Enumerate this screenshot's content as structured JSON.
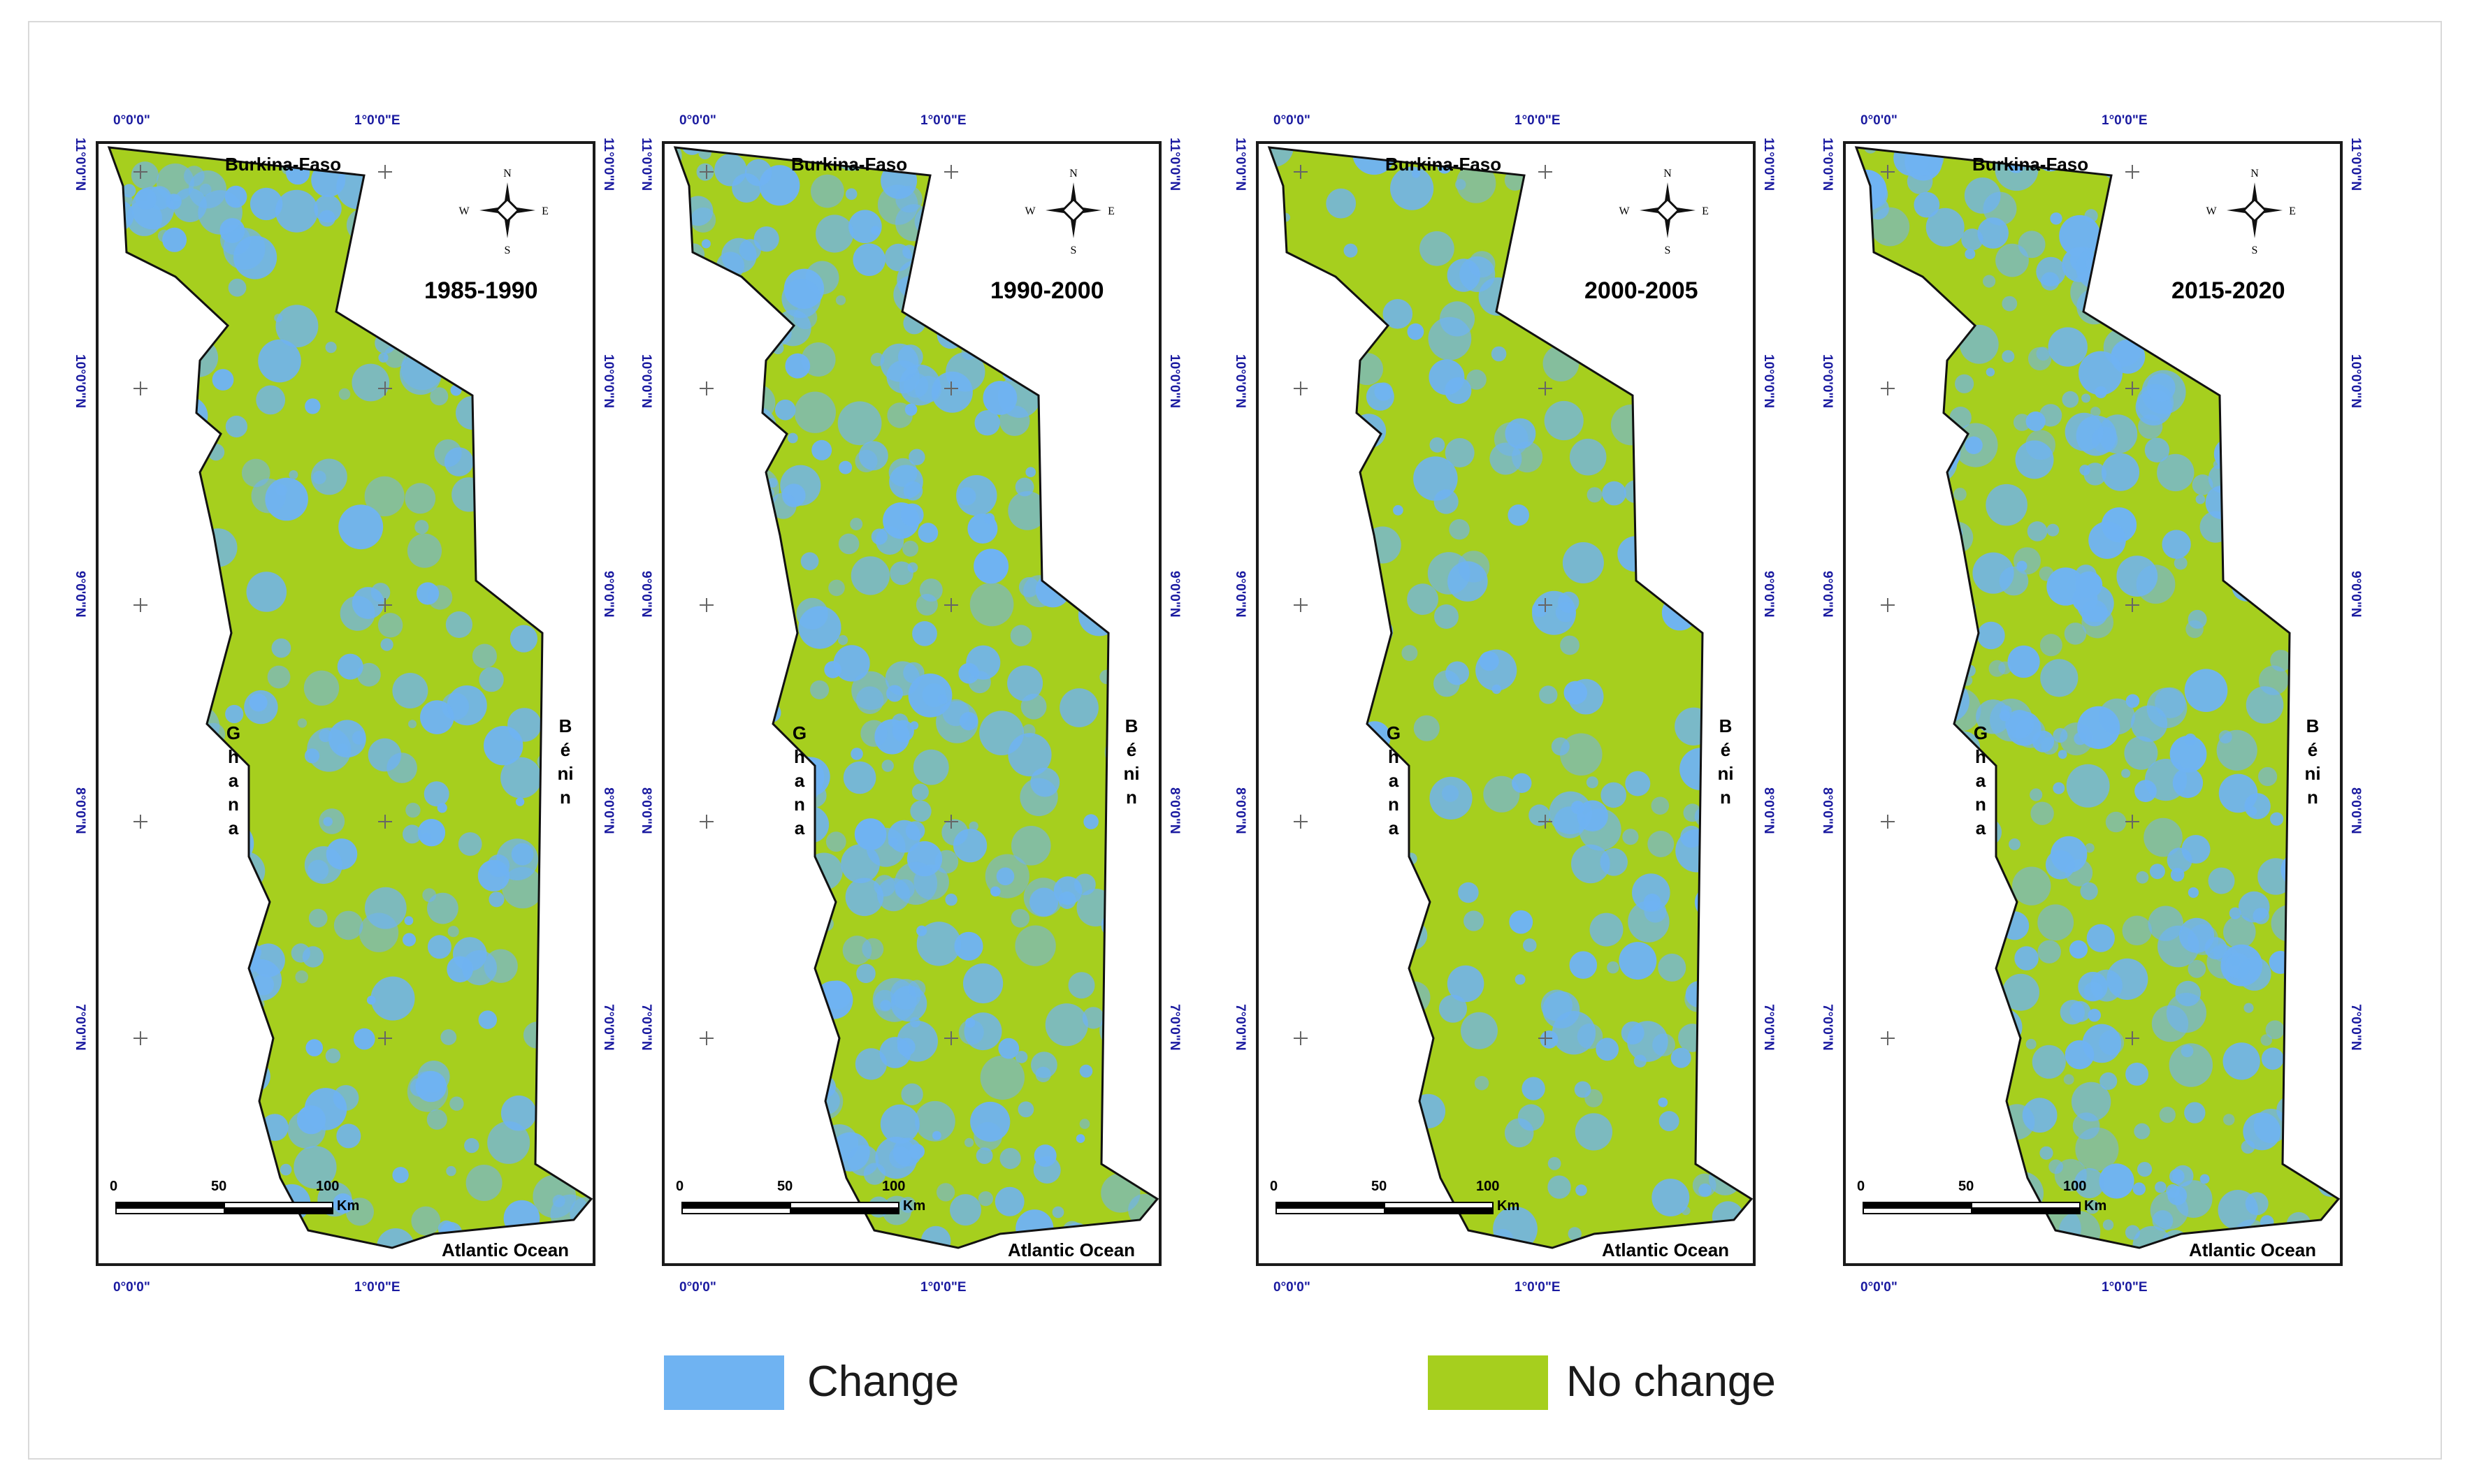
{
  "colors": {
    "change": "#6fb3f2",
    "no_change": "#a6cf1e",
    "frame": "#1a1a1a",
    "graticule": "#1a1aa0"
  },
  "graticule": {
    "lon_labels": [
      "0°0'0\"",
      "1°0'0\"E"
    ],
    "lat_labels": [
      "11°0'0\"N",
      "10°0'0\"N",
      "9°0'0\"N",
      "8°0'0\"N",
      "7°0'0\"N"
    ]
  },
  "map_labels": {
    "north": "Burkina-Faso",
    "west": "Ghana",
    "east": "Bénin",
    "south": "Atlantic Ocean"
  },
  "compass": {
    "n": "N",
    "s": "S",
    "e": "E",
    "w": "W"
  },
  "scale_bar": {
    "ticks": [
      "0",
      "50",
      "100"
    ],
    "unit": "Km"
  },
  "panels": [
    {
      "period": "1985-1990",
      "change_fraction": 0.4
    },
    {
      "period": "1990-2000",
      "change_fraction": 0.5
    },
    {
      "period": "2000-2005",
      "change_fraction": 0.32
    },
    {
      "period": "2015-2020",
      "change_fraction": 0.55
    }
  ],
  "legend": [
    {
      "label": "Change",
      "color": "#6fb3f2"
    },
    {
      "label": "No change",
      "color": "#a6cf1e"
    }
  ]
}
